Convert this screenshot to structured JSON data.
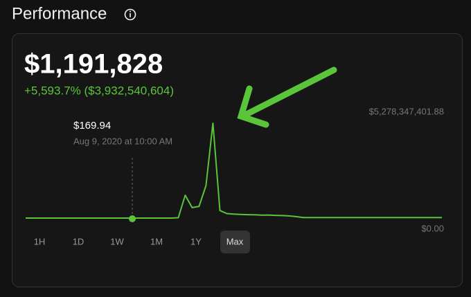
{
  "header": {
    "title": "Performance"
  },
  "portfolio": {
    "value": "$1,191,828",
    "change": "+5,593.7% ($3,932,540,604)"
  },
  "hover": {
    "price": "$169.94",
    "time": "Aug 9, 2020 at 10:00 AM"
  },
  "chart_data": {
    "type": "line",
    "color": "#5ac53b",
    "categories": [
      null,
      null,
      null,
      null,
      null,
      null,
      null,
      null,
      null,
      null,
      null,
      null,
      null,
      null,
      null,
      null,
      null,
      null,
      null,
      null,
      null,
      null,
      null,
      null,
      null,
      null,
      null,
      null,
      null,
      null,
      null,
      null,
      null,
      null,
      null,
      null,
      null,
      null,
      null,
      null,
      null,
      null,
      null,
      null,
      null,
      null,
      null,
      null,
      null,
      null,
      null,
      null,
      null,
      null,
      null,
      null,
      null,
      null,
      null,
      null,
      null
    ],
    "values": [
      0,
      0,
      0,
      0,
      0,
      0,
      0,
      0,
      0,
      0,
      0,
      0,
      0,
      0,
      0,
      0,
      0,
      0,
      0,
      0,
      0,
      0,
      20000000,
      1270000000,
      580000000,
      650000000,
      1810000000,
      5278347401.88,
      420000000,
      250000000,
      220000000,
      200000000,
      190000000,
      180000000,
      160000000,
      170000000,
      150000000,
      140000000,
      120000000,
      80000000,
      30000000,
      30000000,
      30000000,
      30000000,
      30000000,
      30000000,
      30000000,
      30000000,
      30000000,
      30000000,
      30000000,
      30000000,
      30000000,
      30000000,
      30000000,
      30000000,
      30000000,
      30000000,
      30000000,
      30000000,
      30000000
    ],
    "ylim": [
      0,
      5278347401.88
    ],
    "yticks": [
      {
        "value": 5278347401.88,
        "label": "$5,278,347,401.88"
      },
      {
        "value": 0,
        "label": "$0.00"
      }
    ],
    "grid": false
  },
  "ranges": [
    "1H",
    "1D",
    "1W",
    "1M",
    "1Y",
    "Max"
  ],
  "selected_range_index": 5
}
